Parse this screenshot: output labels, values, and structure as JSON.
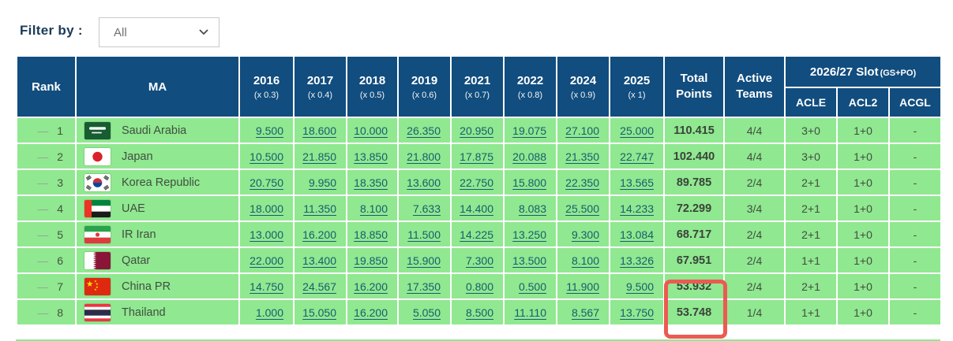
{
  "filter": {
    "label": "Filter by :",
    "value": "All"
  },
  "colors": {
    "header_bg": "#114d7e",
    "row_bg": "#90e890",
    "highlight_border": "#ec5a52",
    "link": "#175d6d"
  },
  "table": {
    "headers": {
      "rank": "Rank",
      "ma": "MA",
      "years": [
        {
          "year": "2016",
          "multiplier": "(x 0.3)"
        },
        {
          "year": "2017",
          "multiplier": "(x 0.4)"
        },
        {
          "year": "2018",
          "multiplier": "(x 0.5)"
        },
        {
          "year": "2019",
          "multiplier": "(x 0.6)"
        },
        {
          "year": "2021",
          "multiplier": "(x 0.7)"
        },
        {
          "year": "2022",
          "multiplier": "(x 0.8)"
        },
        {
          "year": "2024",
          "multiplier": "(x 0.9)"
        },
        {
          "year": "2025",
          "multiplier": "(x 1)"
        }
      ],
      "total_points": "Total Points",
      "active_teams": "Active Teams",
      "slot_group": {
        "title": "2026/27 Slot",
        "suffix": "(GS+PO)",
        "columns": [
          "ACLE",
          "ACL2",
          "ACGL"
        ]
      }
    },
    "rows": [
      {
        "trend": "—",
        "rank": "1",
        "flag": "flag-saudi-arabia",
        "country": "Saudi Arabia",
        "points": [
          "9.500",
          "18.600",
          "10.000",
          "26.350",
          "20.950",
          "19.075",
          "27.100",
          "25.000"
        ],
        "total": "110.415",
        "active_teams": "4/4",
        "acle": "3+0",
        "acl2": "1+0",
        "acgl": "-"
      },
      {
        "trend": "—",
        "rank": "2",
        "flag": "flag-japan",
        "country": "Japan",
        "points": [
          "10.500",
          "21.850",
          "13.850",
          "21.800",
          "17.875",
          "20.088",
          "21.350",
          "22.747"
        ],
        "total": "102.440",
        "active_teams": "4/4",
        "acle": "3+0",
        "acl2": "1+0",
        "acgl": "-"
      },
      {
        "trend": "—",
        "rank": "3",
        "flag": "flag-korea-republic",
        "country": "Korea Republic",
        "points": [
          "20.750",
          "9.950",
          "18.350",
          "13.600",
          "22.750",
          "15.800",
          "22.350",
          "13.565"
        ],
        "total": "89.785",
        "active_teams": "2/4",
        "acle": "2+1",
        "acl2": "1+0",
        "acgl": "-"
      },
      {
        "trend": "—",
        "rank": "4",
        "flag": "flag-uae",
        "country": "UAE",
        "points": [
          "18.000",
          "11.350",
          "8.100",
          "7.633",
          "14.400",
          "8.083",
          "25.500",
          "14.233"
        ],
        "total": "72.299",
        "active_teams": "3/4",
        "acle": "2+1",
        "acl2": "1+0",
        "acgl": "-"
      },
      {
        "trend": "—",
        "rank": "5",
        "flag": "flag-ir-iran",
        "country": "IR Iran",
        "points": [
          "13.000",
          "16.200",
          "18.850",
          "11.500",
          "14.225",
          "13.250",
          "9.300",
          "13.084"
        ],
        "total": "68.717",
        "active_teams": "2/4",
        "acle": "2+1",
        "acl2": "1+0",
        "acgl": "-"
      },
      {
        "trend": "—",
        "rank": "6",
        "flag": "flag-qatar",
        "country": "Qatar",
        "points": [
          "22.000",
          "13.400",
          "19.850",
          "15.900",
          "7.300",
          "13.500",
          "8.100",
          "13.326"
        ],
        "total": "67.951",
        "active_teams": "2/4",
        "acle": "1+1",
        "acl2": "1+0",
        "acgl": "-"
      },
      {
        "trend": "—",
        "rank": "7",
        "flag": "flag-china-pr",
        "country": "China PR",
        "points": [
          "14.750",
          "24.567",
          "16.200",
          "17.350",
          "0.800",
          "0.500",
          "11.900",
          "9.500"
        ],
        "total": "53.932",
        "active_teams": "2/4",
        "acle": "2+1",
        "acl2": "1+0",
        "acgl": "-",
        "highlight_total": true
      },
      {
        "trend": "—",
        "rank": "8",
        "flag": "flag-thailand",
        "country": "Thailand",
        "points": [
          "1.000",
          "15.050",
          "16.200",
          "5.050",
          "8.500",
          "11.110",
          "8.567",
          "13.750"
        ],
        "total": "53.748",
        "active_teams": "1/4",
        "acle": "1+1",
        "acl2": "1+0",
        "acgl": "-",
        "highlight_total": true
      }
    ]
  }
}
